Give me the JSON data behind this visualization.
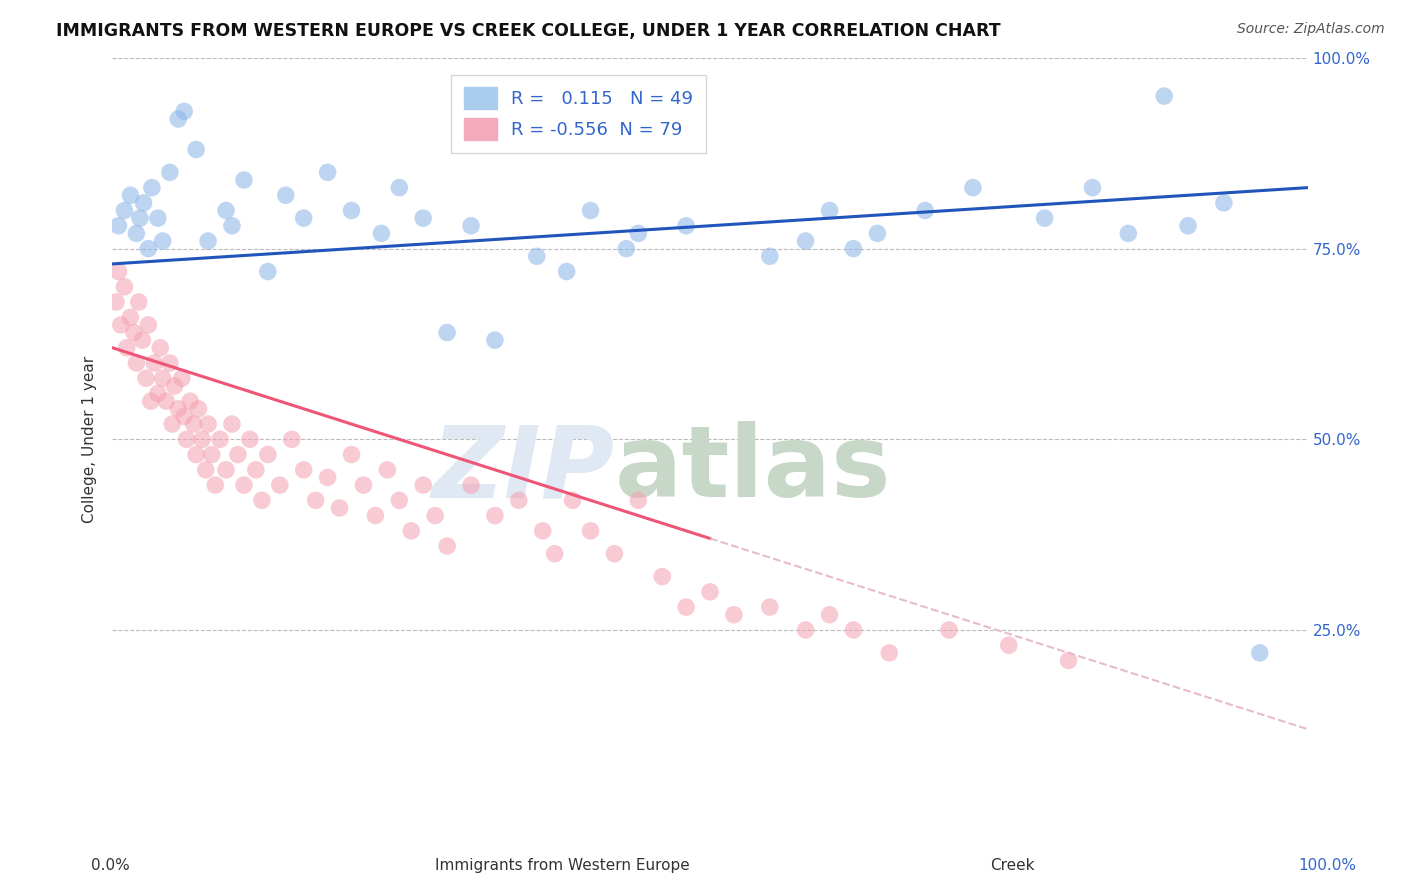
{
  "title": "IMMIGRANTS FROM WESTERN EUROPE VS CREEK COLLEGE, UNDER 1 YEAR CORRELATION CHART",
  "source": "Source: ZipAtlas.com",
  "xlabel_left": "Immigrants from Western Europe",
  "xlabel_right": "Creek",
  "ylabel": "College, Under 1 year",
  "x_min": 0.0,
  "x_max": 100.0,
  "y_min": 0.0,
  "y_max": 100.0,
  "blue_R": 0.115,
  "blue_N": 49,
  "pink_R": -0.556,
  "pink_N": 79,
  "blue_color": "#89B4E8",
  "pink_color": "#F4A0B0",
  "blue_line_color": "#2255BB",
  "pink_line_color": "#EE5577",
  "pink_line_dash_color": "#E8BBCC",
  "watermark_zip": "ZIP",
  "watermark_atlas": "atlas",
  "watermark_color": "#E0E8F4",
  "watermark_atlas_color": "#C8D8C8",
  "background_color": "#FFFFFF",
  "grid_color": "#BBBBBB",
  "blue_x": [
    0.5,
    1.0,
    1.5,
    2.0,
    2.3,
    2.6,
    3.0,
    3.3,
    3.8,
    4.2,
    4.8,
    5.5,
    6.0,
    7.0,
    8.0,
    9.5,
    10.0,
    11.0,
    13.0,
    14.5,
    16.0,
    18.0,
    20.0,
    22.5,
    24.0,
    26.0,
    28.0,
    30.0,
    32.0,
    35.5,
    38.0,
    40.0,
    43.0,
    44.0,
    48.0,
    55.0,
    58.0,
    60.0,
    62.0,
    64.0,
    68.0,
    72.0,
    78.0,
    82.0,
    85.0,
    88.0,
    90.0,
    93.0,
    96.0
  ],
  "blue_y": [
    78.0,
    80.0,
    82.0,
    77.0,
    79.0,
    81.0,
    75.0,
    83.0,
    79.0,
    76.0,
    85.0,
    92.0,
    93.0,
    88.0,
    76.0,
    80.0,
    78.0,
    84.0,
    72.0,
    82.0,
    79.0,
    85.0,
    80.0,
    77.0,
    83.0,
    79.0,
    64.0,
    78.0,
    63.0,
    74.0,
    72.0,
    80.0,
    75.0,
    77.0,
    78.0,
    74.0,
    76.0,
    80.0,
    75.0,
    77.0,
    80.0,
    83.0,
    79.0,
    83.0,
    77.0,
    95.0,
    78.0,
    81.0,
    22.0
  ],
  "pink_x": [
    0.3,
    0.5,
    0.7,
    1.0,
    1.2,
    1.5,
    1.8,
    2.0,
    2.2,
    2.5,
    2.8,
    3.0,
    3.2,
    3.5,
    3.8,
    4.0,
    4.2,
    4.5,
    4.8,
    5.0,
    5.2,
    5.5,
    5.8,
    6.0,
    6.2,
    6.5,
    6.8,
    7.0,
    7.2,
    7.5,
    7.8,
    8.0,
    8.3,
    8.6,
    9.0,
    9.5,
    10.0,
    10.5,
    11.0,
    11.5,
    12.0,
    12.5,
    13.0,
    14.0,
    15.0,
    16.0,
    17.0,
    18.0,
    19.0,
    20.0,
    21.0,
    22.0,
    23.0,
    24.0,
    25.0,
    26.0,
    27.0,
    28.0,
    30.0,
    32.0,
    34.0,
    36.0,
    37.0,
    38.5,
    40.0,
    42.0,
    44.0,
    46.0,
    48.0,
    50.0,
    52.0,
    55.0,
    58.0,
    60.0,
    62.0,
    65.0,
    70.0,
    75.0,
    80.0
  ],
  "pink_y": [
    68.0,
    72.0,
    65.0,
    70.0,
    62.0,
    66.0,
    64.0,
    60.0,
    68.0,
    63.0,
    58.0,
    65.0,
    55.0,
    60.0,
    56.0,
    62.0,
    58.0,
    55.0,
    60.0,
    52.0,
    57.0,
    54.0,
    58.0,
    53.0,
    50.0,
    55.0,
    52.0,
    48.0,
    54.0,
    50.0,
    46.0,
    52.0,
    48.0,
    44.0,
    50.0,
    46.0,
    52.0,
    48.0,
    44.0,
    50.0,
    46.0,
    42.0,
    48.0,
    44.0,
    50.0,
    46.0,
    42.0,
    45.0,
    41.0,
    48.0,
    44.0,
    40.0,
    46.0,
    42.0,
    38.0,
    44.0,
    40.0,
    36.0,
    44.0,
    40.0,
    42.0,
    38.0,
    35.0,
    42.0,
    38.0,
    35.0,
    42.0,
    32.0,
    28.0,
    30.0,
    27.0,
    28.0,
    25.0,
    27.0,
    25.0,
    22.0,
    25.0,
    23.0,
    21.0
  ],
  "blue_line_x0": 0.0,
  "blue_line_y0": 73.0,
  "blue_line_x1": 100.0,
  "blue_line_y1": 83.0,
  "pink_solid_x0": 0.0,
  "pink_solid_y0": 62.0,
  "pink_solid_x1": 50.0,
  "pink_solid_y1": 37.0,
  "pink_dash_x0": 50.0,
  "pink_dash_y0": 37.0,
  "pink_dash_x1": 100.0,
  "pink_dash_y1": 12.0
}
